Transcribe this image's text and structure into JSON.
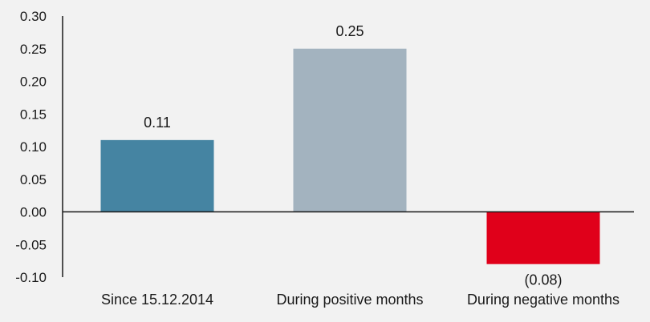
{
  "chart_data": {
    "type": "bar",
    "title": "",
    "xlabel": "",
    "ylabel": "",
    "ylim": [
      -0.1,
      0.3
    ],
    "yticks": [
      "0.30",
      "0.25",
      "0.20",
      "0.15",
      "0.10",
      "0.05",
      "0.00",
      "-0.05",
      "-0.10"
    ],
    "grid": false,
    "categories": [
      "Since 15.12.2014",
      "During positive months",
      "During negative months"
    ],
    "values": [
      0.11,
      0.25,
      -0.08
    ],
    "data_labels": [
      "0.11",
      "0.25",
      "(0.08)"
    ],
    "colors": [
      "#4584a2",
      "#a3b3bf",
      "#e0001a"
    ]
  }
}
